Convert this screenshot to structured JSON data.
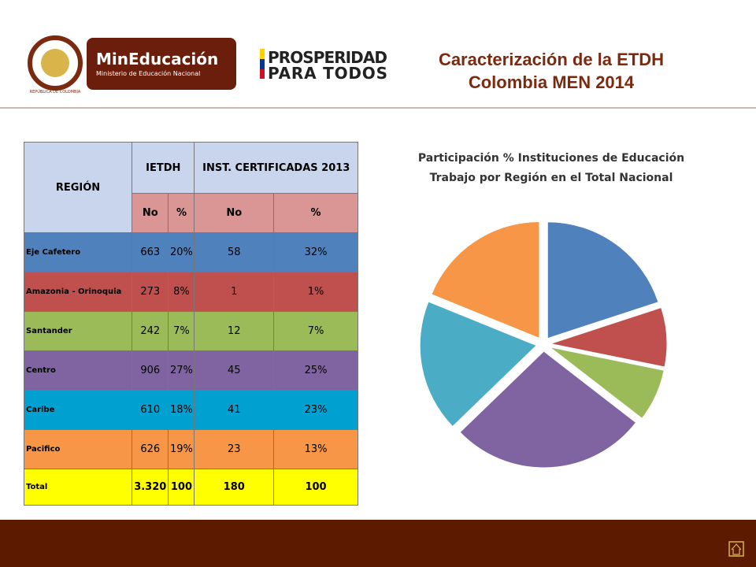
{
  "header": {
    "logo_text": "MinEducación",
    "logo_subtext": "Ministerio de Educación Nacional",
    "crest_text": "REPÚBLICA DE COLOMBIA",
    "slogan_line1": "PROSPERIDAD",
    "slogan_line2": "PARA TODOS",
    "title_line1": "Caracterización de la  ETDH",
    "title_line2": "Colombia MEN 2014"
  },
  "table": {
    "head": [
      "REGIÓN",
      "IETDH",
      "INST. CERTIFICADAS 2013"
    ],
    "subhead": [
      "No",
      "%",
      "No",
      "%"
    ],
    "rows": [
      [
        "Eje Cafetero",
        "663",
        "20%",
        "58",
        "32%"
      ],
      [
        "Amazonia - Orinoquia",
        "273",
        "8%",
        "1",
        "1%"
      ],
      [
        "Santander",
        "242",
        "7%",
        "12",
        "7%"
      ],
      [
        "Centro",
        "906",
        "27%",
        "45",
        "25%"
      ],
      [
        "Caribe",
        "610",
        "18%",
        "41",
        "23%"
      ],
      [
        "Pacifico",
        "626",
        "19%",
        "23",
        "13%"
      ],
      [
        "Total",
        "3.320",
        "100",
        "180",
        "100"
      ]
    ]
  },
  "chart_data": {
    "type": "pie",
    "title": [
      "Participación % Instituciones de Educación",
      "Trabajo por Región en el Total Nacional"
    ],
    "categories": [
      "Eje Cafetero",
      "Amazonia - Orinoquia",
      "Santander",
      "Centro",
      "Caribe",
      "Pacifico"
    ],
    "values": [
      663,
      273,
      242,
      906,
      610,
      626
    ],
    "colors": [
      "#4f81bd",
      "#c0504d",
      "#9bbb59",
      "#8064a2",
      "#4bacc6",
      "#f79646"
    ]
  }
}
